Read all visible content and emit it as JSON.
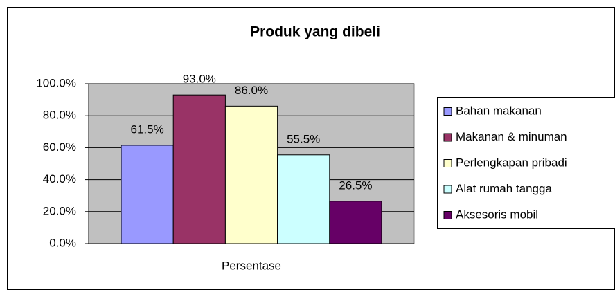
{
  "chart_data": {
    "type": "bar",
    "title": "Produk yang dibeli",
    "categories": [
      "Persentase"
    ],
    "series": [
      {
        "name": "Bahan makanan",
        "color": "#9999ff",
        "values": [
          61.5
        ],
        "value_labels": [
          "61.5%"
        ]
      },
      {
        "name": "Makanan & minuman",
        "color": "#993366",
        "values": [
          93.0
        ],
        "value_labels": [
          "93.0%"
        ]
      },
      {
        "name": "Perlengkapan pribadi",
        "color": "#ffffcc",
        "values": [
          86.0
        ],
        "value_labels": [
          "86.0%"
        ]
      },
      {
        "name": "Alat rumah tangga",
        "color": "#ccffff",
        "values": [
          55.5
        ],
        "value_labels": [
          "55.5%"
        ]
      },
      {
        "name": "Aksesoris mobil",
        "color": "#660066",
        "values": [
          26.5
        ],
        "value_labels": [
          "26.5%"
        ]
      }
    ],
    "ylim": [
      0,
      100
    ],
    "yticks": [
      {
        "value": 0,
        "label": "0.0%"
      },
      {
        "value": 20,
        "label": "20.0%"
      },
      {
        "value": 40,
        "label": "40.0%"
      },
      {
        "value": 60,
        "label": "60.0%"
      },
      {
        "value": 80,
        "label": "80.0%"
      },
      {
        "value": 100,
        "label": "100.0%"
      }
    ],
    "grid": true,
    "legend": "right"
  }
}
